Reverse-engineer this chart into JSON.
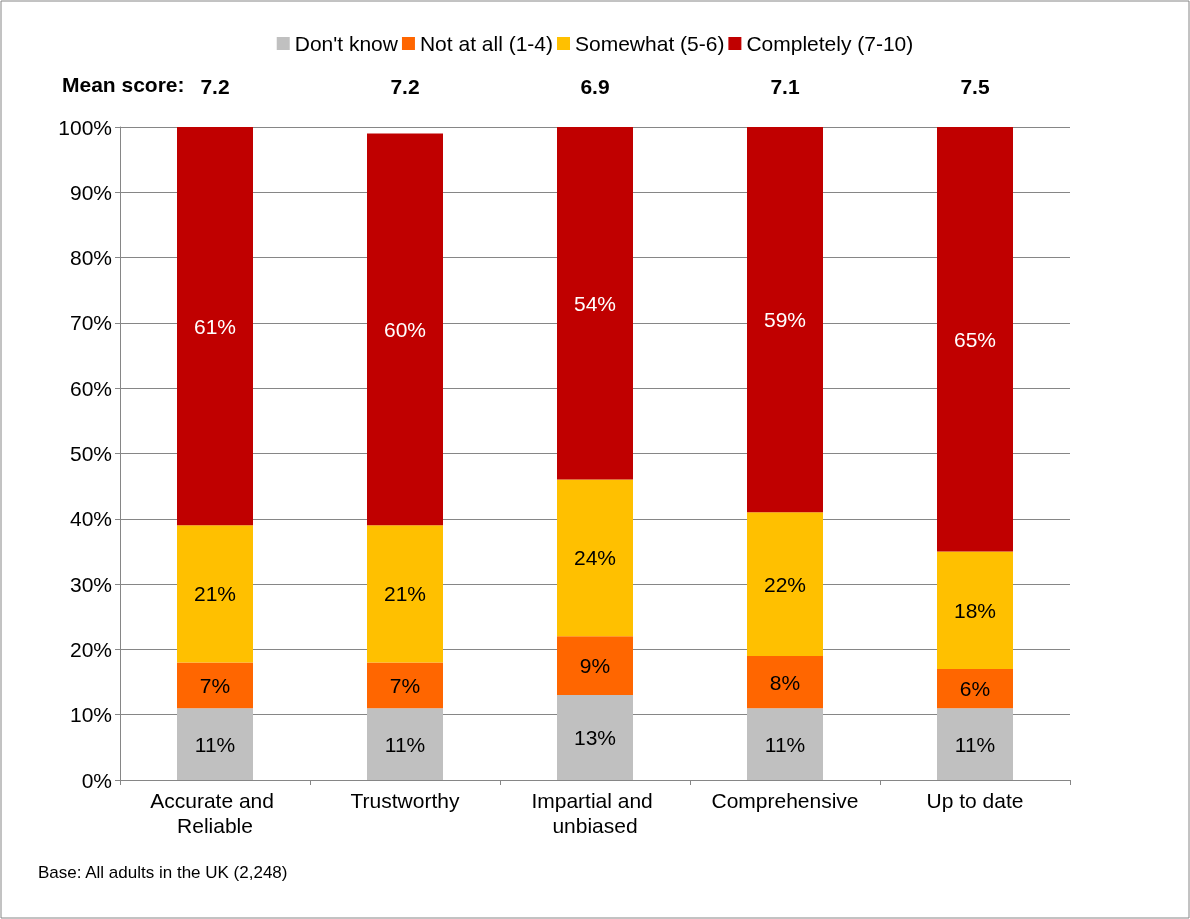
{
  "chart_data": {
    "type": "bar",
    "stacked": true,
    "categories": [
      "Accurate and Reliable",
      "Trustworthy",
      "Impartial and unbiased",
      "Comprehensive",
      "Up to date"
    ],
    "series": [
      {
        "name": "Don't know",
        "color": "#c0c0c0",
        "values": [
          11,
          11,
          13,
          11,
          11
        ],
        "value_labels": [
          "11%",
          "11%",
          "13%",
          "11%",
          "11%"
        ]
      },
      {
        "name": "Not at all (1-4)",
        "color": "#ff6600",
        "values": [
          7,
          7,
          9,
          8,
          6
        ],
        "value_labels": [
          "7%",
          "7%",
          "9%",
          "8%",
          "6%"
        ]
      },
      {
        "name": "Somewhat (5-6)",
        "color": "#ffc000",
        "values": [
          21,
          21,
          24,
          22,
          18
        ],
        "value_labels": [
          "21%",
          "21%",
          "24%",
          "22%",
          "18%"
        ]
      },
      {
        "name": "Completely (7-10)",
        "color": "#c00000",
        "values": [
          61,
          60,
          54,
          59,
          65
        ],
        "value_labels": [
          "61%",
          "60%",
          "54%",
          "59%",
          "65%"
        ]
      }
    ],
    "ylim": [
      0,
      100
    ],
    "yticks": [
      {
        "value": 0,
        "label": "0%"
      },
      {
        "value": 10,
        "label": "10%"
      },
      {
        "value": 20,
        "label": "20%"
      },
      {
        "value": 30,
        "label": "30%"
      },
      {
        "value": 40,
        "label": "40%"
      },
      {
        "value": 50,
        "label": "50%"
      },
      {
        "value": 60,
        "label": "60%"
      },
      {
        "value": 70,
        "label": "70%"
      },
      {
        "value": 80,
        "label": "80%"
      },
      {
        "value": 90,
        "label": "90%"
      },
      {
        "value": 100,
        "label": "100%"
      }
    ],
    "grid": "y",
    "legend": "top",
    "annotations": [
      "Mean score:",
      "7.2",
      "7.2",
      "6.9",
      "7.1",
      "7.5",
      "Base: All adults in the UK (2,248)"
    ]
  }
}
